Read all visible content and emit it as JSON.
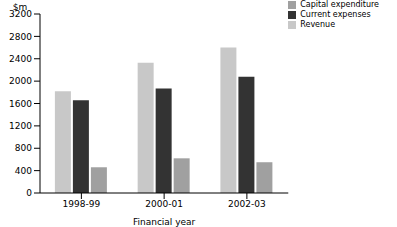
{
  "chart_data": {
    "type": "bar",
    "y_label": "$m",
    "x_label": "Financial year",
    "categories": [
      "1998-99",
      "2000-01",
      "2002-03"
    ],
    "series": [
      {
        "name": "Revenue",
        "color": "#c8c8c8",
        "values": [
          1820,
          2330,
          2600
        ]
      },
      {
        "name": "Current expenses",
        "color": "#333333",
        "values": [
          1660,
          1870,
          2080
        ]
      },
      {
        "name": "Capital expenditure",
        "color": "#a0a0a0",
        "values": [
          460,
          620,
          550
        ]
      }
    ],
    "ylim": [
      0,
      3200
    ],
    "yticks": [
      0,
      400,
      800,
      1200,
      1600,
      2000,
      2400,
      2800,
      3200
    ],
    "grid": false,
    "legend": "top-right"
  }
}
